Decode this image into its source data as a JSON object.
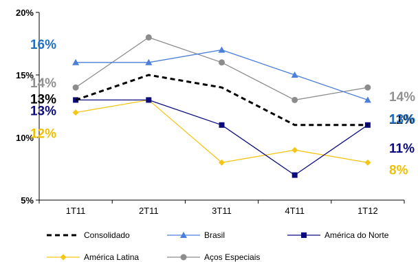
{
  "chart_data": {
    "type": "line",
    "categories": [
      "1T11",
      "2T11",
      "3T11",
      "4T11",
      "1T12"
    ],
    "ylim": [
      5,
      20
    ],
    "yticks": [
      "5%",
      "10%",
      "15%",
      "20%"
    ],
    "grid": false,
    "legend_placement": "bottom",
    "series": [
      {
        "name": "Consolidado",
        "color": "#000000",
        "values": [
          13,
          15,
          14,
          11,
          11
        ],
        "style": "dashed",
        "marker": "none",
        "labels": {
          "first": "13%",
          "last": "11%"
        }
      },
      {
        "name": "Brasil",
        "color": "#4a7fdc",
        "values": [
          16,
          16,
          17,
          15,
          13
        ],
        "style": "solid",
        "marker": "triangle",
        "label_color": "#1f6fc4",
        "labels": {
          "first": "16%",
          "last": "13%"
        }
      },
      {
        "name": "América do Norte",
        "color": "#0b0b7e",
        "values": [
          13,
          13,
          11,
          7,
          11
        ],
        "style": "solid",
        "marker": "square",
        "labels": {
          "first": "13%",
          "last": "11%"
        }
      },
      {
        "name": "América Latina",
        "color": "#f5c518",
        "values": [
          12,
          13,
          8,
          9,
          8
        ],
        "style": "solid",
        "marker": "diamond",
        "label_color": "#f0c000",
        "labels": {
          "first": "12%",
          "last": "8%"
        }
      },
      {
        "name": "Aços Especiais",
        "color": "#8c8c8c",
        "values": [
          14,
          18,
          16,
          13,
          14
        ],
        "style": "solid",
        "marker": "circle",
        "label_color": "#909090",
        "labels": {
          "first": "14%",
          "last": "14%"
        }
      }
    ]
  }
}
